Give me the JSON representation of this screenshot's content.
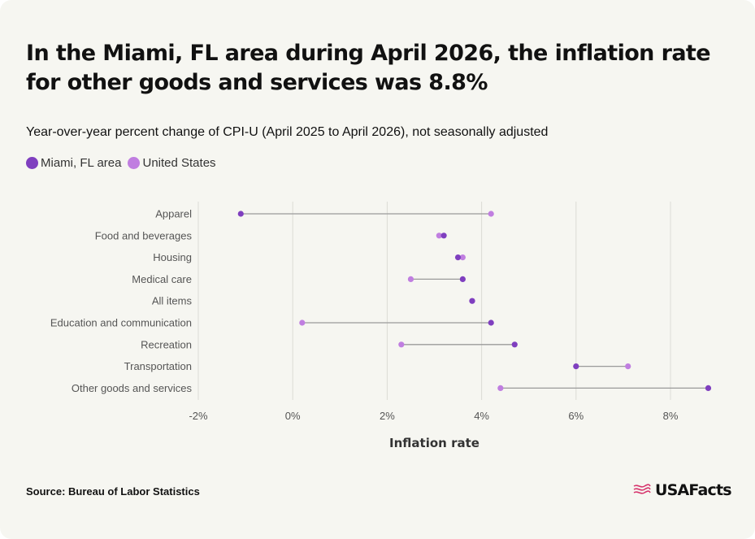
{
  "title": "In the Miami, FL area during April 2026, the inflation rate for other goods and services was 8.8%",
  "subtitle": "Year-over-year percent change of CPI-U (April 2025 to April 2026), not seasonally adjusted",
  "source": "Source: Bureau of Labor Statistics",
  "brand": "USAFacts",
  "colors": {
    "miami": "#7f3fbf",
    "us": "#c07ee0",
    "connector": "#9a9a9a",
    "grid": "#dcdcd6",
    "label": "#555555"
  },
  "chart_data": {
    "type": "dumbbell",
    "xlabel": "Inflation rate",
    "xlim": [
      -2,
      9
    ],
    "xticks": [
      -2,
      0,
      2,
      4,
      6,
      8
    ],
    "xtick_labels": [
      "-2%",
      "0%",
      "2%",
      "4%",
      "6%",
      "8%"
    ],
    "legend": [
      "Miami, FL area",
      "United States"
    ],
    "legend_position": "top-left",
    "grid": true,
    "categories": [
      "Apparel",
      "Food and beverages",
      "Housing",
      "Medical care",
      "All items",
      "Education and communication",
      "Recreation",
      "Transportation",
      "Other goods and services"
    ],
    "series": [
      {
        "name": "Miami, FL area",
        "values": [
          -1.1,
          3.2,
          3.5,
          3.6,
          3.8,
          4.2,
          4.7,
          6.0,
          8.8
        ]
      },
      {
        "name": "United States",
        "values": [
          4.2,
          3.1,
          3.6,
          2.5,
          3.8,
          0.2,
          2.3,
          7.1,
          4.4
        ]
      }
    ]
  }
}
